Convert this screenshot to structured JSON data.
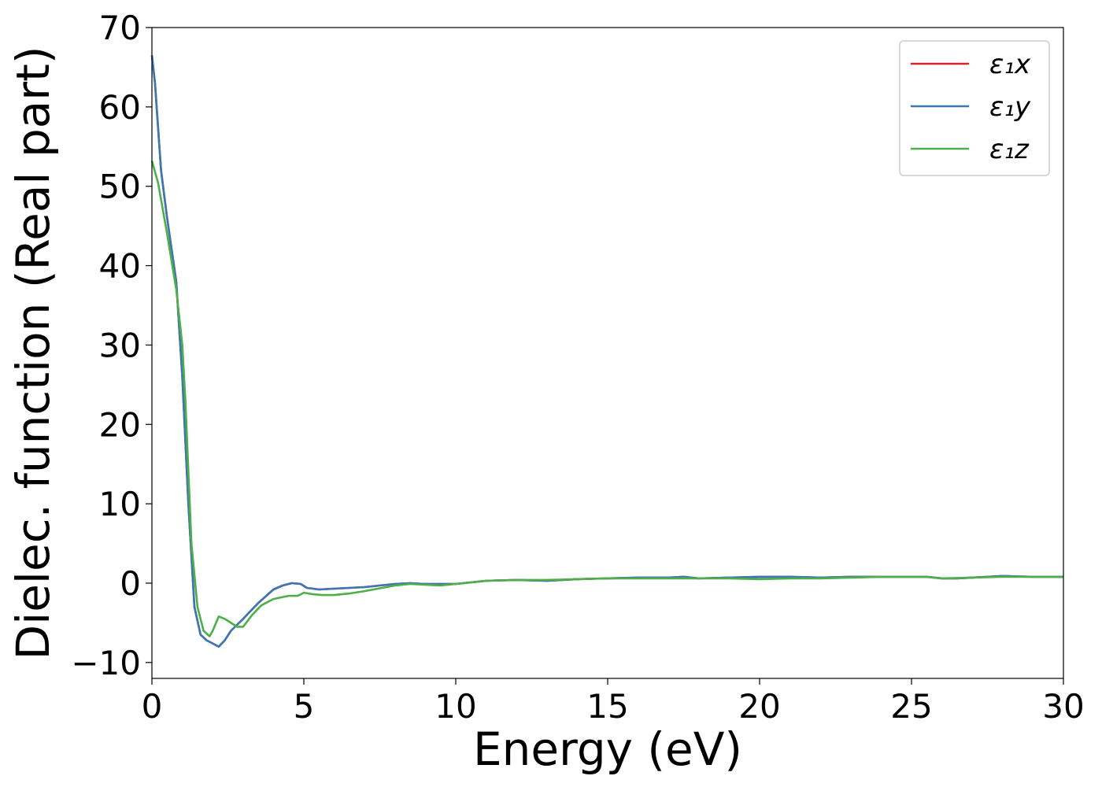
{
  "chart_data": {
    "type": "line",
    "xlabel": "Energy (eV)",
    "ylabel": "Dielec. function (Real part)",
    "xlim": [
      0,
      30
    ],
    "ylim": [
      -12,
      70
    ],
    "x_ticks": [
      0,
      5,
      10,
      15,
      20,
      25,
      30
    ],
    "y_ticks": [
      -10,
      0,
      10,
      20,
      30,
      40,
      50,
      60,
      70
    ],
    "x_tick_labels": [
      "0",
      "5",
      "10",
      "15",
      "20",
      "25",
      "30"
    ],
    "y_tick_labels": [
      "−10",
      "0",
      "10",
      "20",
      "30",
      "40",
      "50",
      "60",
      "70"
    ],
    "grid": false,
    "legend_position": "top-right",
    "series": [
      {
        "name": "ε₁x",
        "color": "#d62728",
        "x": [
          0,
          0.1,
          0.3,
          0.5,
          0.8,
          1.0,
          1.2,
          1.4,
          1.6,
          1.8,
          2.0,
          2.2,
          2.4,
          2.6,
          3.0,
          3.5,
          4.0,
          4.3,
          4.6,
          4.9,
          5.1,
          5.5,
          6.0,
          7.0,
          8.0,
          8.5,
          9.0,
          10.0,
          11.0,
          12.0,
          13.0,
          14.0,
          15.0,
          16.0,
          17.0,
          17.5,
          18.0,
          19.0,
          20.0,
          21.0,
          22.0,
          23.0,
          24.0,
          25.0,
          25.5,
          26.0,
          26.5,
          27.0,
          28.0,
          29.0,
          30.0
        ],
        "y": [
          66.5,
          63,
          52,
          46,
          38,
          26,
          10,
          -3,
          -6.5,
          -7.2,
          -7.6,
          -8.0,
          -7.2,
          -6.0,
          -4.5,
          -2.5,
          -0.8,
          -0.3,
          0.0,
          -0.1,
          -0.6,
          -0.8,
          -0.7,
          -0.5,
          -0.1,
          0.0,
          -0.1,
          -0.1,
          0.3,
          0.4,
          0.3,
          0.5,
          0.6,
          0.7,
          0.7,
          0.8,
          0.6,
          0.7,
          0.8,
          0.8,
          0.7,
          0.8,
          0.8,
          0.8,
          0.8,
          0.6,
          0.6,
          0.7,
          0.9,
          0.8,
          0.8
        ]
      },
      {
        "name": "ε₁y",
        "color": "#3a78b3",
        "x": [
          0,
          0.1,
          0.3,
          0.5,
          0.8,
          1.0,
          1.2,
          1.4,
          1.6,
          1.8,
          2.0,
          2.2,
          2.4,
          2.6,
          3.0,
          3.5,
          4.0,
          4.3,
          4.6,
          4.9,
          5.1,
          5.5,
          6.0,
          7.0,
          8.0,
          8.5,
          9.0,
          10.0,
          11.0,
          12.0,
          13.0,
          14.0,
          15.0,
          16.0,
          17.0,
          17.5,
          18.0,
          19.0,
          20.0,
          21.0,
          22.0,
          23.0,
          24.0,
          25.0,
          25.5,
          26.0,
          26.5,
          27.0,
          28.0,
          29.0,
          30.0
        ],
        "y": [
          66.5,
          63,
          52,
          46,
          38,
          26,
          10,
          -3,
          -6.5,
          -7.2,
          -7.6,
          -8.0,
          -7.2,
          -6.0,
          -4.5,
          -2.5,
          -0.8,
          -0.3,
          0.0,
          -0.1,
          -0.6,
          -0.8,
          -0.7,
          -0.5,
          -0.1,
          0.0,
          -0.1,
          -0.1,
          0.3,
          0.4,
          0.3,
          0.5,
          0.6,
          0.7,
          0.7,
          0.8,
          0.6,
          0.7,
          0.8,
          0.8,
          0.7,
          0.8,
          0.8,
          0.8,
          0.8,
          0.6,
          0.6,
          0.7,
          0.9,
          0.8,
          0.8
        ]
      },
      {
        "name": "ε₁z",
        "color": "#4daf4a",
        "x": [
          0,
          0.2,
          0.5,
          0.8,
          1.0,
          1.1,
          1.3,
          1.5,
          1.7,
          1.9,
          2.0,
          2.2,
          2.4,
          2.6,
          2.8,
          3.0,
          3.3,
          3.6,
          4.0,
          4.5,
          4.8,
          5.0,
          5.3,
          5.6,
          6.0,
          6.5,
          7.0,
          8.0,
          8.5,
          9.0,
          9.5,
          10.0,
          11.0,
          12.0,
          13.0,
          14.0,
          15.0,
          16.0,
          17.0,
          18.0,
          19.0,
          20.0,
          21.0,
          22.0,
          23.0,
          24.0,
          25.0,
          25.5,
          26.0,
          27.0,
          28.0,
          29.0,
          30.0
        ],
        "y": [
          53.2,
          50.5,
          44,
          37,
          30,
          23,
          5,
          -3,
          -6,
          -6.7,
          -6.0,
          -4.2,
          -4.5,
          -5.0,
          -5.5,
          -5.5,
          -4.0,
          -2.8,
          -2.0,
          -1.6,
          -1.6,
          -1.2,
          -1.4,
          -1.5,
          -1.5,
          -1.3,
          -1.0,
          -0.3,
          -0.1,
          -0.2,
          -0.3,
          -0.1,
          0.3,
          0.4,
          0.4,
          0.5,
          0.6,
          0.6,
          0.6,
          0.6,
          0.6,
          0.5,
          0.6,
          0.6,
          0.7,
          0.8,
          0.8,
          0.8,
          0.6,
          0.7,
          0.8,
          0.8,
          0.8
        ]
      }
    ]
  }
}
